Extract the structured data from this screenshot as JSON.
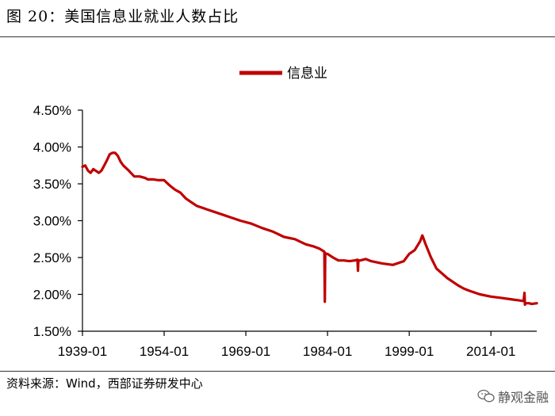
{
  "header": {
    "title": "图 20：美国信息业就业人数占比"
  },
  "footer": {
    "source": "资料来源：Wind，西部证券研发中心",
    "watermark": "静观金融",
    "watermark_icon": "wechat-icon"
  },
  "colors": {
    "series": "#C00000",
    "axis": "#000000"
  },
  "chart_data": {
    "type": "line",
    "title": "",
    "xlabel": "",
    "ylabel": "",
    "legend": {
      "placement": "top-center"
    },
    "grid": false,
    "xlim": [
      "1939-01",
      "2022-06"
    ],
    "ylim": [
      1.5,
      4.5
    ],
    "y_ticks": [
      "4.50%",
      "4.00%",
      "3.50%",
      "3.00%",
      "2.50%",
      "2.00%",
      "1.50%"
    ],
    "y_tick_values": [
      4.5,
      4.0,
      3.5,
      3.0,
      2.5,
      2.0,
      1.5
    ],
    "x_ticks": [
      "1939-01",
      "1954-01",
      "1969-01",
      "1984-01",
      "1999-01",
      "2014-01"
    ],
    "series": [
      {
        "name": "信息业",
        "x": [
          "1939-01",
          "1939-07",
          "1940-01",
          "1940-07",
          "1941-01",
          "1942-01",
          "1942-07",
          "1943-01",
          "1943-07",
          "1944-01",
          "1944-07",
          "1945-01",
          "1945-07",
          "1946-01",
          "1946-07",
          "1947-07",
          "1948-07",
          "1949-07",
          "1950-07",
          "1951-01",
          "1952-01",
          "1953-01",
          "1954-01",
          "1955-01",
          "1955-07",
          "1956-01",
          "1957-01",
          "1958-01",
          "1959-01",
          "1960-01",
          "1962-01",
          "1964-01",
          "1966-01",
          "1968-01",
          "1970-01",
          "1972-01",
          "1974-01",
          "1976-01",
          "1978-01",
          "1980-01",
          "1981-07",
          "1982-07",
          "1983-06",
          "1983-07",
          "1983-08",
          "1983-09",
          "1984-01",
          "1985-01",
          "1986-01",
          "1987-01",
          "1988-01",
          "1989-01",
          "1989-07",
          "1989-08",
          "1989-09",
          "1990-01",
          "1991-01",
          "1992-01",
          "1994-01",
          "1996-01",
          "1998-01",
          "1999-01",
          "2000-01",
          "2001-01",
          "2001-06",
          "2002-01",
          "2003-01",
          "2004-01",
          "2006-01",
          "2008-01",
          "2009-01",
          "2010-01",
          "2012-01",
          "2014-01",
          "2016-01",
          "2018-01",
          "2019-01",
          "2020-01",
          "2020-03",
          "2020-04",
          "2020-05",
          "2021-01",
          "2021-07",
          "2022-06"
        ],
        "values": [
          3.73,
          3.75,
          3.68,
          3.65,
          3.7,
          3.65,
          3.68,
          3.75,
          3.82,
          3.9,
          3.92,
          3.92,
          3.88,
          3.8,
          3.75,
          3.68,
          3.6,
          3.6,
          3.58,
          3.56,
          3.56,
          3.55,
          3.55,
          3.48,
          3.45,
          3.42,
          3.38,
          3.3,
          3.25,
          3.2,
          3.15,
          3.1,
          3.05,
          3.0,
          2.96,
          2.9,
          2.85,
          2.78,
          2.75,
          2.68,
          2.65,
          2.62,
          2.58,
          1.9,
          2.56,
          2.55,
          2.55,
          2.5,
          2.46,
          2.46,
          2.45,
          2.46,
          2.47,
          2.32,
          2.46,
          2.46,
          2.48,
          2.45,
          2.42,
          2.4,
          2.45,
          2.55,
          2.6,
          2.72,
          2.8,
          2.68,
          2.5,
          2.35,
          2.22,
          2.12,
          2.08,
          2.05,
          2.0,
          1.97,
          1.95,
          1.93,
          1.92,
          1.91,
          2.02,
          1.86,
          1.88,
          1.88,
          1.87,
          1.88
        ]
      }
    ]
  }
}
